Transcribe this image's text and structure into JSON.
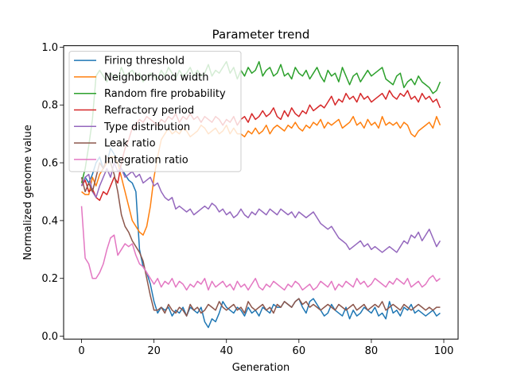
{
  "chart_data": {
    "type": "line",
    "title": "Parameter trend",
    "xlabel": "Generation",
    "ylabel": "Normalized genome value",
    "xlim": [
      -4.95,
      103.95
    ],
    "ylim": [
      -0.01,
      1.005
    ],
    "xticks": [
      0,
      20,
      40,
      60,
      80,
      100
    ],
    "yticks": [
      0.0,
      0.2,
      0.4,
      0.6,
      0.8,
      1.0
    ],
    "xtick_labels": [
      "0",
      "20",
      "40",
      "60",
      "80",
      "100"
    ],
    "ytick_labels": [
      "0.0",
      "0.2",
      "0.4",
      "0.6",
      "0.8",
      "1.0"
    ],
    "legend_position": "top-left",
    "series": [
      {
        "name": "Firing threshold",
        "color": "#1f77b4",
        "values": [
          0.52,
          0.55,
          0.53,
          0.56,
          0.6,
          0.62,
          0.58,
          0.6,
          0.65,
          0.63,
          0.6,
          0.58,
          0.56,
          0.54,
          0.53,
          0.5,
          0.3,
          0.24,
          0.22,
          0.18,
          0.12,
          0.08,
          0.1,
          0.09,
          0.1,
          0.07,
          0.09,
          0.08,
          0.1,
          0.07,
          0.1,
          0.09,
          0.08,
          0.1,
          0.05,
          0.03,
          0.06,
          0.05,
          0.08,
          0.12,
          0.1,
          0.09,
          0.08,
          0.1,
          0.09,
          0.07,
          0.1,
          0.08,
          0.09,
          0.07,
          0.1,
          0.09,
          0.08,
          0.11,
          0.1,
          0.1,
          0.12,
          0.11,
          0.1,
          0.12,
          0.13,
          0.1,
          0.08,
          0.12,
          0.13,
          0.11,
          0.09,
          0.07,
          0.08,
          0.11,
          0.09,
          0.08,
          0.07,
          0.1,
          0.06,
          0.09,
          0.07,
          0.08,
          0.1,
          0.09,
          0.08,
          0.1,
          0.07,
          0.08,
          0.06,
          0.12,
          0.08,
          0.09,
          0.07,
          0.1,
          0.09,
          0.11,
          0.08,
          0.09,
          0.08,
          0.07,
          0.08,
          0.09,
          0.07,
          0.08
        ]
      },
      {
        "name": "Neighborhood width",
        "color": "#ff7f0e",
        "values": [
          0.5,
          0.49,
          0.49,
          0.55,
          0.52,
          0.56,
          0.58,
          0.6,
          0.62,
          0.62,
          0.6,
          0.55,
          0.5,
          0.45,
          0.4,
          0.38,
          0.36,
          0.35,
          0.38,
          0.45,
          0.55,
          0.62,
          0.68,
          0.7,
          0.72,
          0.7,
          0.71,
          0.7,
          0.72,
          0.71,
          0.69,
          0.7,
          0.71,
          0.73,
          0.72,
          0.7,
          0.71,
          0.72,
          0.7,
          0.71,
          0.73,
          0.7,
          0.72,
          0.7,
          0.7,
          0.69,
          0.71,
          0.7,
          0.72,
          0.7,
          0.71,
          0.73,
          0.7,
          0.72,
          0.73,
          0.72,
          0.71,
          0.73,
          0.72,
          0.74,
          0.72,
          0.71,
          0.73,
          0.72,
          0.74,
          0.73,
          0.75,
          0.72,
          0.74,
          0.73,
          0.74,
          0.75,
          0.72,
          0.73,
          0.74,
          0.76,
          0.73,
          0.74,
          0.72,
          0.75,
          0.73,
          0.74,
          0.72,
          0.76,
          0.73,
          0.74,
          0.73,
          0.74,
          0.72,
          0.74,
          0.73,
          0.7,
          0.69,
          0.71,
          0.72,
          0.73,
          0.74,
          0.72,
          0.76,
          0.73
        ]
      },
      {
        "name": "Random fire probability",
        "color": "#2ca02c",
        "values": [
          0.53,
          0.58,
          0.66,
          0.75,
          0.9,
          0.92,
          0.9,
          0.88,
          0.91,
          0.9,
          0.89,
          0.93,
          0.9,
          0.91,
          0.92,
          0.9,
          0.91,
          0.88,
          0.9,
          0.91,
          0.9,
          0.89,
          0.92,
          0.9,
          0.93,
          0.91,
          0.89,
          0.92,
          0.9,
          0.91,
          0.93,
          0.9,
          0.92,
          0.9,
          0.91,
          0.94,
          0.9,
          0.92,
          0.91,
          0.93,
          0.95,
          0.91,
          0.93,
          0.89,
          0.92,
          0.9,
          0.93,
          0.91,
          0.92,
          0.95,
          0.9,
          0.92,
          0.93,
          0.9,
          0.91,
          0.94,
          0.9,
          0.91,
          0.89,
          0.93,
          0.91,
          0.9,
          0.92,
          0.89,
          0.91,
          0.93,
          0.9,
          0.88,
          0.92,
          0.9,
          0.91,
          0.88,
          0.93,
          0.9,
          0.87,
          0.9,
          0.91,
          0.88,
          0.9,
          0.92,
          0.9,
          0.91,
          0.92,
          0.93,
          0.89,
          0.88,
          0.87,
          0.9,
          0.91,
          0.86,
          0.88,
          0.89,
          0.87,
          0.9,
          0.88,
          0.87,
          0.86,
          0.84,
          0.85,
          0.88
        ]
      },
      {
        "name": "Refractory period",
        "color": "#d62728",
        "values": [
          0.52,
          0.54,
          0.5,
          0.51,
          0.48,
          0.47,
          0.5,
          0.49,
          0.52,
          0.55,
          0.53,
          0.6,
          0.65,
          0.68,
          0.72,
          0.73,
          0.75,
          0.74,
          0.76,
          0.75,
          0.74,
          0.73,
          0.75,
          0.74,
          0.76,
          0.75,
          0.77,
          0.74,
          0.76,
          0.75,
          0.77,
          0.75,
          0.76,
          0.74,
          0.76,
          0.75,
          0.74,
          0.76,
          0.75,
          0.73,
          0.75,
          0.74,
          0.76,
          0.73,
          0.75,
          0.76,
          0.74,
          0.77,
          0.75,
          0.76,
          0.78,
          0.76,
          0.77,
          0.79,
          0.76,
          0.75,
          0.78,
          0.76,
          0.79,
          0.77,
          0.76,
          0.78,
          0.77,
          0.8,
          0.78,
          0.79,
          0.8,
          0.79,
          0.81,
          0.83,
          0.8,
          0.82,
          0.81,
          0.84,
          0.82,
          0.83,
          0.81,
          0.84,
          0.82,
          0.83,
          0.81,
          0.82,
          0.83,
          0.84,
          0.82,
          0.85,
          0.83,
          0.82,
          0.84,
          0.83,
          0.85,
          0.82,
          0.83,
          0.81,
          0.84,
          0.82,
          0.83,
          0.81,
          0.82,
          0.79
        ]
      },
      {
        "name": "Type distribution",
        "color": "#9467bd",
        "values": [
          0.52,
          0.55,
          0.56,
          0.5,
          0.48,
          0.52,
          0.55,
          0.58,
          0.55,
          0.6,
          0.57,
          0.58,
          0.55,
          0.56,
          0.57,
          0.55,
          0.56,
          0.53,
          0.54,
          0.55,
          0.52,
          0.53,
          0.5,
          0.48,
          0.47,
          0.48,
          0.44,
          0.45,
          0.44,
          0.43,
          0.44,
          0.42,
          0.43,
          0.44,
          0.45,
          0.44,
          0.46,
          0.45,
          0.43,
          0.44,
          0.42,
          0.43,
          0.41,
          0.42,
          0.44,
          0.42,
          0.41,
          0.43,
          0.42,
          0.44,
          0.43,
          0.42,
          0.44,
          0.43,
          0.42,
          0.44,
          0.43,
          0.42,
          0.43,
          0.41,
          0.43,
          0.42,
          0.41,
          0.42,
          0.43,
          0.41,
          0.39,
          0.38,
          0.37,
          0.38,
          0.36,
          0.34,
          0.33,
          0.32,
          0.3,
          0.31,
          0.32,
          0.33,
          0.31,
          0.32,
          0.3,
          0.31,
          0.3,
          0.29,
          0.3,
          0.31,
          0.3,
          0.29,
          0.31,
          0.33,
          0.32,
          0.35,
          0.34,
          0.36,
          0.33,
          0.35,
          0.37,
          0.34,
          0.31,
          0.33
        ]
      },
      {
        "name": "Leak ratio",
        "color": "#8c564b",
        "values": [
          0.55,
          0.5,
          0.53,
          0.5,
          0.55,
          0.6,
          0.58,
          0.62,
          0.6,
          0.56,
          0.5,
          0.42,
          0.38,
          0.36,
          0.33,
          0.31,
          0.29,
          0.26,
          0.2,
          0.14,
          0.09,
          0.09,
          0.1,
          0.08,
          0.11,
          0.09,
          0.08,
          0.1,
          0.09,
          0.07,
          0.11,
          0.09,
          0.1,
          0.08,
          0.09,
          0.11,
          0.1,
          0.09,
          0.12,
          0.1,
          0.09,
          0.1,
          0.11,
          0.09,
          0.1,
          0.08,
          0.12,
          0.1,
          0.09,
          0.1,
          0.11,
          0.09,
          0.1,
          0.08,
          0.11,
          0.1,
          0.12,
          0.11,
          0.1,
          0.12,
          0.13,
          0.11,
          0.12,
          0.1,
          0.11,
          0.1,
          0.09,
          0.1,
          0.11,
          0.1,
          0.09,
          0.11,
          0.1,
          0.09,
          0.1,
          0.11,
          0.09,
          0.1,
          0.11,
          0.09,
          0.1,
          0.11,
          0.1,
          0.12,
          0.09,
          0.1,
          0.11,
          0.1,
          0.09,
          0.11,
          0.1,
          0.09,
          0.1,
          0.11,
          0.1,
          0.09,
          0.1,
          0.09,
          0.1,
          0.1
        ]
      },
      {
        "name": "Integration ratio",
        "color": "#e377c2",
        "values": [
          0.45,
          0.27,
          0.25,
          0.2,
          0.2,
          0.22,
          0.25,
          0.3,
          0.34,
          0.35,
          0.28,
          0.3,
          0.32,
          0.31,
          0.32,
          0.28,
          0.25,
          0.24,
          0.22,
          0.2,
          0.18,
          0.2,
          0.17,
          0.19,
          0.18,
          0.2,
          0.17,
          0.19,
          0.18,
          0.16,
          0.18,
          0.17,
          0.19,
          0.18,
          0.2,
          0.16,
          0.19,
          0.17,
          0.18,
          0.19,
          0.17,
          0.18,
          0.16,
          0.19,
          0.17,
          0.18,
          0.16,
          0.18,
          0.2,
          0.17,
          0.16,
          0.18,
          0.17,
          0.19,
          0.18,
          0.17,
          0.16,
          0.18,
          0.17,
          0.19,
          0.18,
          0.16,
          0.17,
          0.18,
          0.16,
          0.17,
          0.19,
          0.18,
          0.17,
          0.19,
          0.16,
          0.18,
          0.17,
          0.19,
          0.18,
          0.17,
          0.2,
          0.18,
          0.19,
          0.17,
          0.18,
          0.2,
          0.19,
          0.18,
          0.17,
          0.19,
          0.18,
          0.2,
          0.19,
          0.18,
          0.2,
          0.17,
          0.18,
          0.19,
          0.17,
          0.18,
          0.2,
          0.21,
          0.19,
          0.2
        ]
      }
    ]
  }
}
